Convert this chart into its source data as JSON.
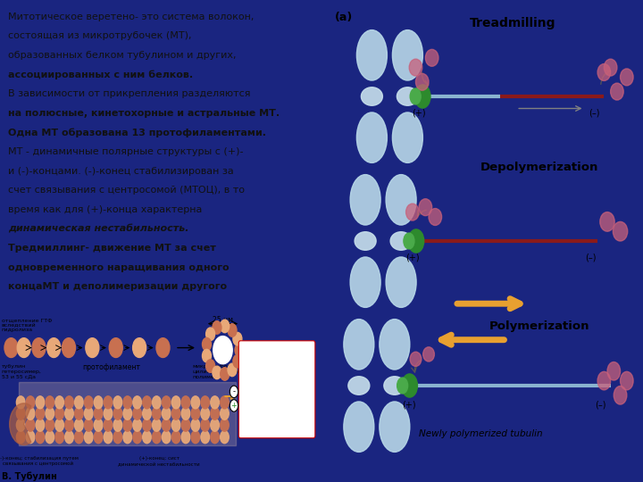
{
  "bg_color": "#1a2580",
  "left_bg": "#FFC857",
  "right_bg": "#ffffff",
  "text_color": "#1a1a1a",
  "left_text_lines": [
    {
      "text": "Митотическое веретено- это система волокон,",
      "bold": false,
      "italic": false
    },
    {
      "text": "состоящая из микротрубочек (МТ),",
      "bold": false,
      "italic": false
    },
    {
      "text": "образованных белком тубулином и других,",
      "bold": false,
      "italic": false
    },
    {
      "text": "ассоциированных с ним белков.",
      "bold": true,
      "italic": false
    },
    {
      "text": "В зависимости от прикрепления разделяются",
      "bold": false,
      "italic": false
    },
    {
      "text": "на полюсные, кинетохорные и астральные МТ.",
      "bold": true,
      "italic": false
    },
    {
      "text": "Одна МТ образована 13 протофиламентами.",
      "bold": true,
      "italic": false
    },
    {
      "text": "МТ - динамичные полярные структуры с (+)-",
      "bold": false,
      "italic": false
    },
    {
      "text": "и (-)-концами. (-)-конец стабилизирован за",
      "bold": false,
      "italic": false
    },
    {
      "text": "счет связывания с центросомой (МТОЦ), в то",
      "bold": false,
      "italic": false
    },
    {
      "text": "время как для (+)-конца характерна",
      "bold": false,
      "italic": false
    },
    {
      "text": "динамическая нестабильность.",
      "bold": true,
      "italic": true
    },
    {
      "text": "Тредмиллинг- движение МТ за счет",
      "bold": true,
      "italic": false
    },
    {
      "text": "одновременного наращивания одного",
      "bold": true,
      "italic": false
    },
    {
      "text": "концаМТ и деполимеризации другого",
      "bold": true,
      "italic": false
    }
  ],
  "bottom_label": "В. Тубулин",
  "diagram_label": "(a)",
  "treadmilling_label": "Treadmilling",
  "depolymerization_label": "Depolymerization",
  "polymerization_label": "Polymerization",
  "newly_label": "Newly polymerized tubulin",
  "chrom_color": "#b8d8e8",
  "chrom_color2": "#c8e0ec",
  "kinet_color1": "#2d7a2d",
  "kinet_color2": "#4aaa4a",
  "mt_blue": "#8ab4d0",
  "mt_red": "#8b1a1a",
  "pink_blob": "#c8607a",
  "orange_arrow": "#e8a030"
}
